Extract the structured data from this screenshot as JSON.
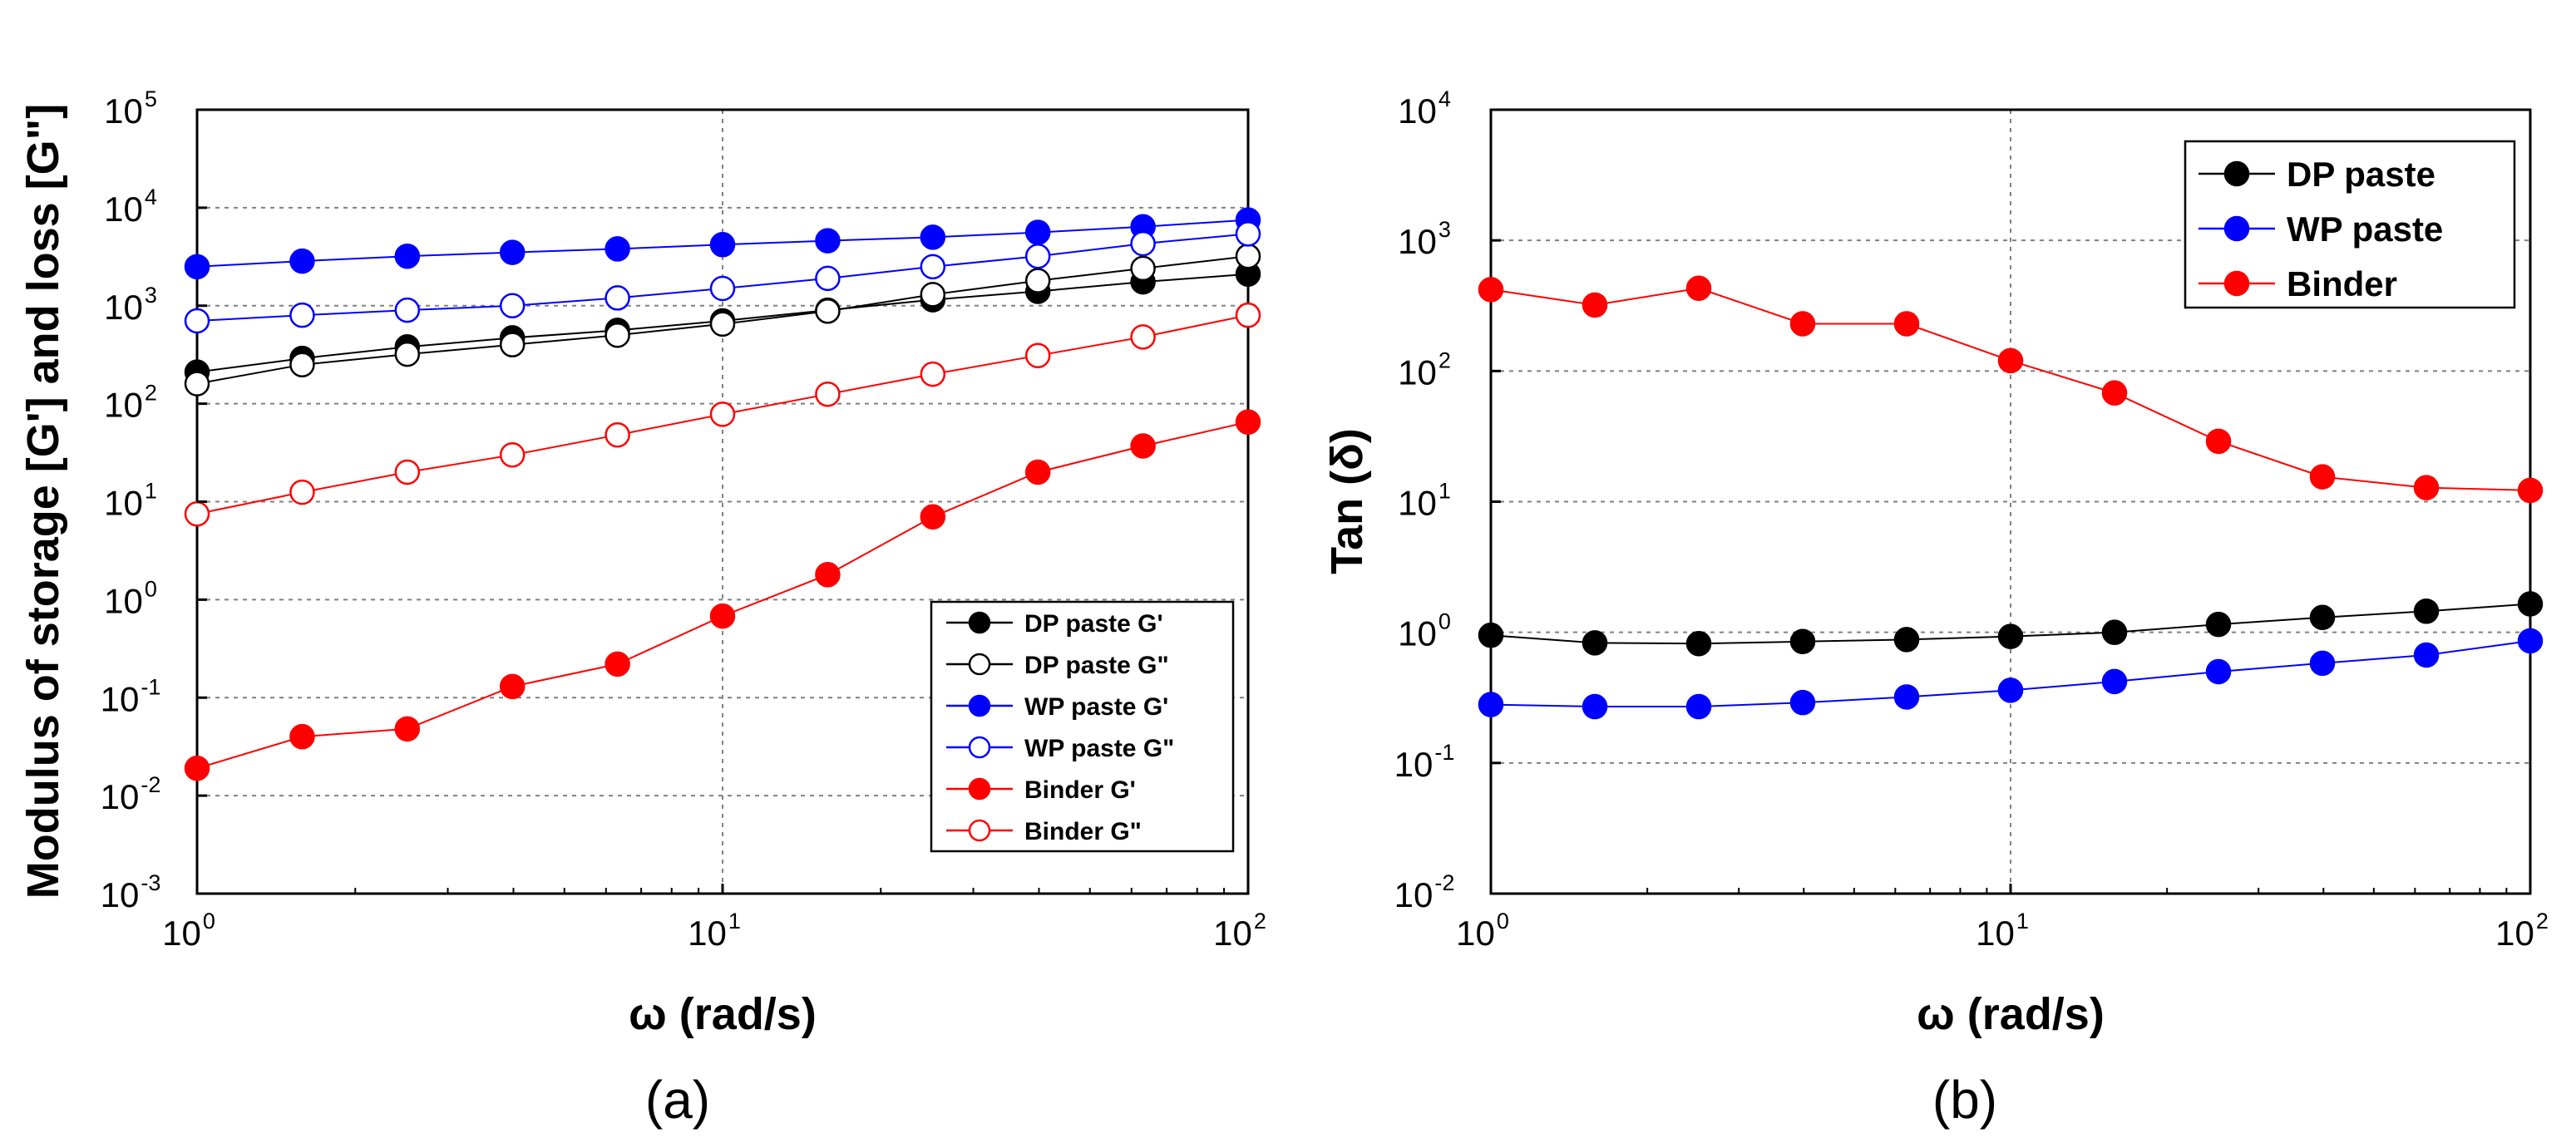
{
  "chart_data": [
    {
      "type": "line",
      "panel": "a",
      "caption": "(a)",
      "xlabel": "ω (rad/s)",
      "ylabel": "Modulus of storage [G'] and loss [G\"]",
      "xscale": "log",
      "yscale": "log",
      "xlim": [
        1,
        100
      ],
      "ylim": [
        0.001,
        100000
      ],
      "x_ticks": [
        {
          "base": "10",
          "exp": "0"
        },
        {
          "base": "10",
          "exp": "1"
        },
        {
          "base": "10",
          "exp": "2"
        }
      ],
      "y_ticks": [
        {
          "base": "10",
          "exp": "-3"
        },
        {
          "base": "10",
          "exp": "-2"
        },
        {
          "base": "10",
          "exp": "-1"
        },
        {
          "base": "10",
          "exp": "0"
        },
        {
          "base": "10",
          "exp": "1"
        },
        {
          "base": "10",
          "exp": "2"
        },
        {
          "base": "10",
          "exp": "3"
        },
        {
          "base": "10",
          "exp": "4"
        },
        {
          "base": "10",
          "exp": "5"
        }
      ],
      "grid": true,
      "legend_position": "lower-right",
      "x": [
        1,
        1.585,
        2.512,
        3.981,
        6.31,
        10,
        15.85,
        25.12,
        39.81,
        63.1,
        100
      ],
      "series": [
        {
          "name": "DP paste G'",
          "color": "#000000",
          "filled": true,
          "values": [
            210,
            290,
            380,
            470,
            560,
            700,
            900,
            1150,
            1400,
            1750,
            2100
          ]
        },
        {
          "name": "DP paste G\"",
          "color": "#000000",
          "filled": false,
          "values": [
            160,
            250,
            320,
            400,
            500,
            650,
            880,
            1300,
            1800,
            2400,
            3200
          ]
        },
        {
          "name": "WP paste G'",
          "color": "#0000ff",
          "filled": true,
          "values": [
            2500,
            2850,
            3200,
            3500,
            3800,
            4200,
            4600,
            5000,
            5600,
            6400,
            7500
          ]
        },
        {
          "name": "WP paste G\"",
          "color": "#0000ff",
          "filled": false,
          "values": [
            700,
            800,
            900,
            1000,
            1200,
            1500,
            1900,
            2500,
            3200,
            4300,
            5400
          ]
        },
        {
          "name": "Binder G'",
          "color": "#ff0000",
          "filled": true,
          "values": [
            0.019,
            0.04,
            0.048,
            0.13,
            0.22,
            0.68,
            1.8,
            7,
            20,
            37,
            65
          ]
        },
        {
          "name": "Binder G\"",
          "color": "#ff0000",
          "filled": false,
          "values": [
            7.5,
            12.5,
            20,
            30,
            48,
            78,
            125,
            200,
            310,
            480,
            800
          ]
        }
      ]
    },
    {
      "type": "line",
      "panel": "b",
      "caption": "(b)",
      "xlabel": "ω (rad/s)",
      "ylabel": "Tan (δ)",
      "xscale": "log",
      "yscale": "log",
      "xlim": [
        1,
        100
      ],
      "ylim": [
        0.01,
        10000
      ],
      "x_ticks": [
        {
          "base": "10",
          "exp": "0"
        },
        {
          "base": "10",
          "exp": "1"
        },
        {
          "base": "10",
          "exp": "2"
        }
      ],
      "y_ticks": [
        {
          "base": "10",
          "exp": "-2"
        },
        {
          "base": "10",
          "exp": "-1"
        },
        {
          "base": "10",
          "exp": "0"
        },
        {
          "base": "10",
          "exp": "1"
        },
        {
          "base": "10",
          "exp": "2"
        },
        {
          "base": "10",
          "exp": "3"
        },
        {
          "base": "10",
          "exp": "4"
        }
      ],
      "grid": true,
      "legend_position": "top-right",
      "x": [
        1,
        1.585,
        2.512,
        3.981,
        6.31,
        10,
        15.85,
        25.12,
        39.81,
        63.1,
        100
      ],
      "series": [
        {
          "name": "DP paste",
          "color": "#000000",
          "filled": true,
          "values": [
            0.95,
            0.83,
            0.82,
            0.85,
            0.88,
            0.93,
            1.0,
            1.15,
            1.3,
            1.45,
            1.65
          ]
        },
        {
          "name": "WP paste",
          "color": "#0000ff",
          "filled": true,
          "values": [
            0.28,
            0.27,
            0.27,
            0.29,
            0.32,
            0.36,
            0.42,
            0.5,
            0.58,
            0.67,
            0.86
          ]
        },
        {
          "name": "Binder",
          "color": "#ff0000",
          "filled": true,
          "values": [
            420,
            320,
            430,
            230,
            230,
            120,
            68,
            29,
            15.5,
            12.8,
            12.2
          ]
        }
      ]
    }
  ]
}
